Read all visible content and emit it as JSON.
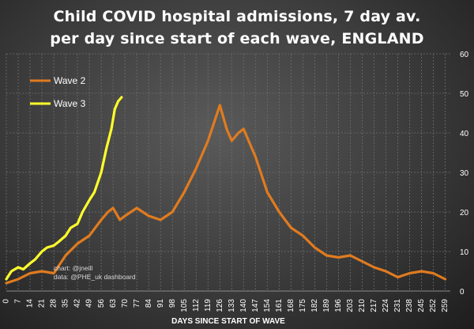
{
  "chart_data": {
    "type": "line",
    "title_line1": "Child COVID hospital admissions, 7 day av.",
    "title_line2": "per day since start of each wave, ENGLAND",
    "xlabel": "DAYS SINCE START OF WAVE",
    "ylabel": "",
    "xlim": [
      0,
      262
    ],
    "ylim": [
      0,
      60
    ],
    "x_ticks": [
      0,
      7,
      14,
      21,
      28,
      35,
      42,
      49,
      56,
      63,
      70,
      77,
      84,
      91,
      98,
      105,
      112,
      119,
      126,
      133,
      140,
      147,
      154,
      161,
      168,
      175,
      182,
      189,
      196,
      203,
      210,
      217,
      224,
      231,
      238,
      245,
      252,
      259
    ],
    "y_ticks": [
      0,
      10,
      20,
      30,
      40,
      50,
      60
    ],
    "y_axis_side": "right",
    "grid": true,
    "legend_placement": "top-left",
    "credits": [
      "chart: @jneill",
      "data:  @PHE_uk dashboard"
    ],
    "series": [
      {
        "name": "Wave 2",
        "color": "#e07b1f",
        "x": [
          0,
          7,
          14,
          21,
          28,
          35,
          42,
          49,
          56,
          60,
          63,
          67,
          70,
          77,
          84,
          91,
          98,
          105,
          112,
          119,
          126,
          130,
          133,
          137,
          140,
          143,
          147,
          154,
          161,
          168,
          175,
          182,
          189,
          196,
          203,
          210,
          217,
          224,
          231,
          238,
          245,
          252,
          259
        ],
        "y": [
          2,
          3,
          4.5,
          5,
          4.5,
          9,
          12,
          14,
          18,
          20,
          21,
          18,
          19,
          21,
          19,
          18,
          20,
          25,
          31,
          38,
          47,
          41,
          38,
          40,
          41,
          38,
          34,
          25,
          20,
          16,
          14,
          11,
          9,
          8.5,
          9,
          7.5,
          6,
          5,
          3.5,
          4.5,
          5,
          4.5,
          3
        ]
      },
      {
        "name": "Wave 3",
        "color": "#ffff2b",
        "x": [
          0,
          3,
          7,
          10,
          14,
          17,
          21,
          24,
          28,
          31,
          35,
          38,
          42,
          45,
          49,
          52,
          56,
          59,
          62,
          64,
          66,
          68
        ],
        "y": [
          3,
          5,
          6,
          5.5,
          7,
          8,
          10,
          11,
          11.5,
          12.5,
          14,
          16,
          17,
          20,
          23,
          25,
          30,
          36,
          41,
          46,
          48,
          49
        ]
      }
    ]
  }
}
